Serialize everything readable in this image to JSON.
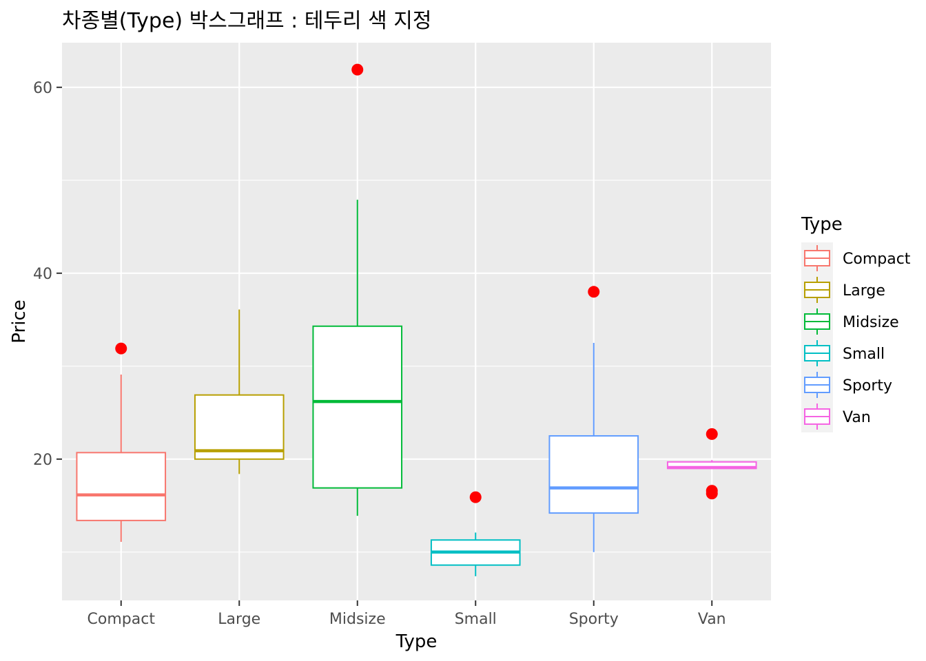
{
  "chart_data": {
    "type": "boxplot",
    "title": "차종별(Type) 박스그래프 : 테두리 색 지정",
    "xlabel": "Type",
    "ylabel": "Price",
    "ylim": [
      4.8,
      64.8
    ],
    "y_ticks": [
      20,
      40,
      60
    ],
    "grid": true,
    "outlier_color": "#ff0000",
    "panel_background": "#ebebeb",
    "legend": {
      "title": "Type",
      "position": "right"
    },
    "categories": [
      "Compact",
      "Large",
      "Midsize",
      "Small",
      "Sporty",
      "Van"
    ],
    "series": [
      {
        "name": "Compact",
        "color": "#f8766d",
        "whisker_low": 11.1,
        "q1": 13.4,
        "median": 16.15,
        "q3": 20.7,
        "whisker_high": 29.1,
        "outliers": [
          31.9
        ]
      },
      {
        "name": "Large",
        "color": "#b79f00",
        "whisker_low": 18.4,
        "q1": 20.0,
        "median": 20.9,
        "q3": 26.9,
        "whisker_high": 36.1,
        "outliers": []
      },
      {
        "name": "Midsize",
        "color": "#00ba38",
        "whisker_low": 13.9,
        "q1": 16.9,
        "median": 26.2,
        "q3": 34.3,
        "whisker_high": 47.9,
        "outliers": [
          61.9
        ]
      },
      {
        "name": "Small",
        "color": "#00bfc4",
        "whisker_low": 7.4,
        "q1": 8.6,
        "median": 10.0,
        "q3": 11.3,
        "whisker_high": 12.1,
        "outliers": [
          15.9
        ]
      },
      {
        "name": "Sporty",
        "color": "#619cff",
        "whisker_low": 10.0,
        "q1": 14.2,
        "median": 16.9,
        "q3": 22.5,
        "whisker_high": 32.5,
        "outliers": [
          38.0
        ]
      },
      {
        "name": "Van",
        "color": "#f564e3",
        "whisker_low": 19.0,
        "q1": 19.0,
        "median": 19.1,
        "q3": 19.7,
        "whisker_high": 19.9,
        "outliers": [
          22.7,
          16.3,
          16.6
        ]
      }
    ]
  }
}
